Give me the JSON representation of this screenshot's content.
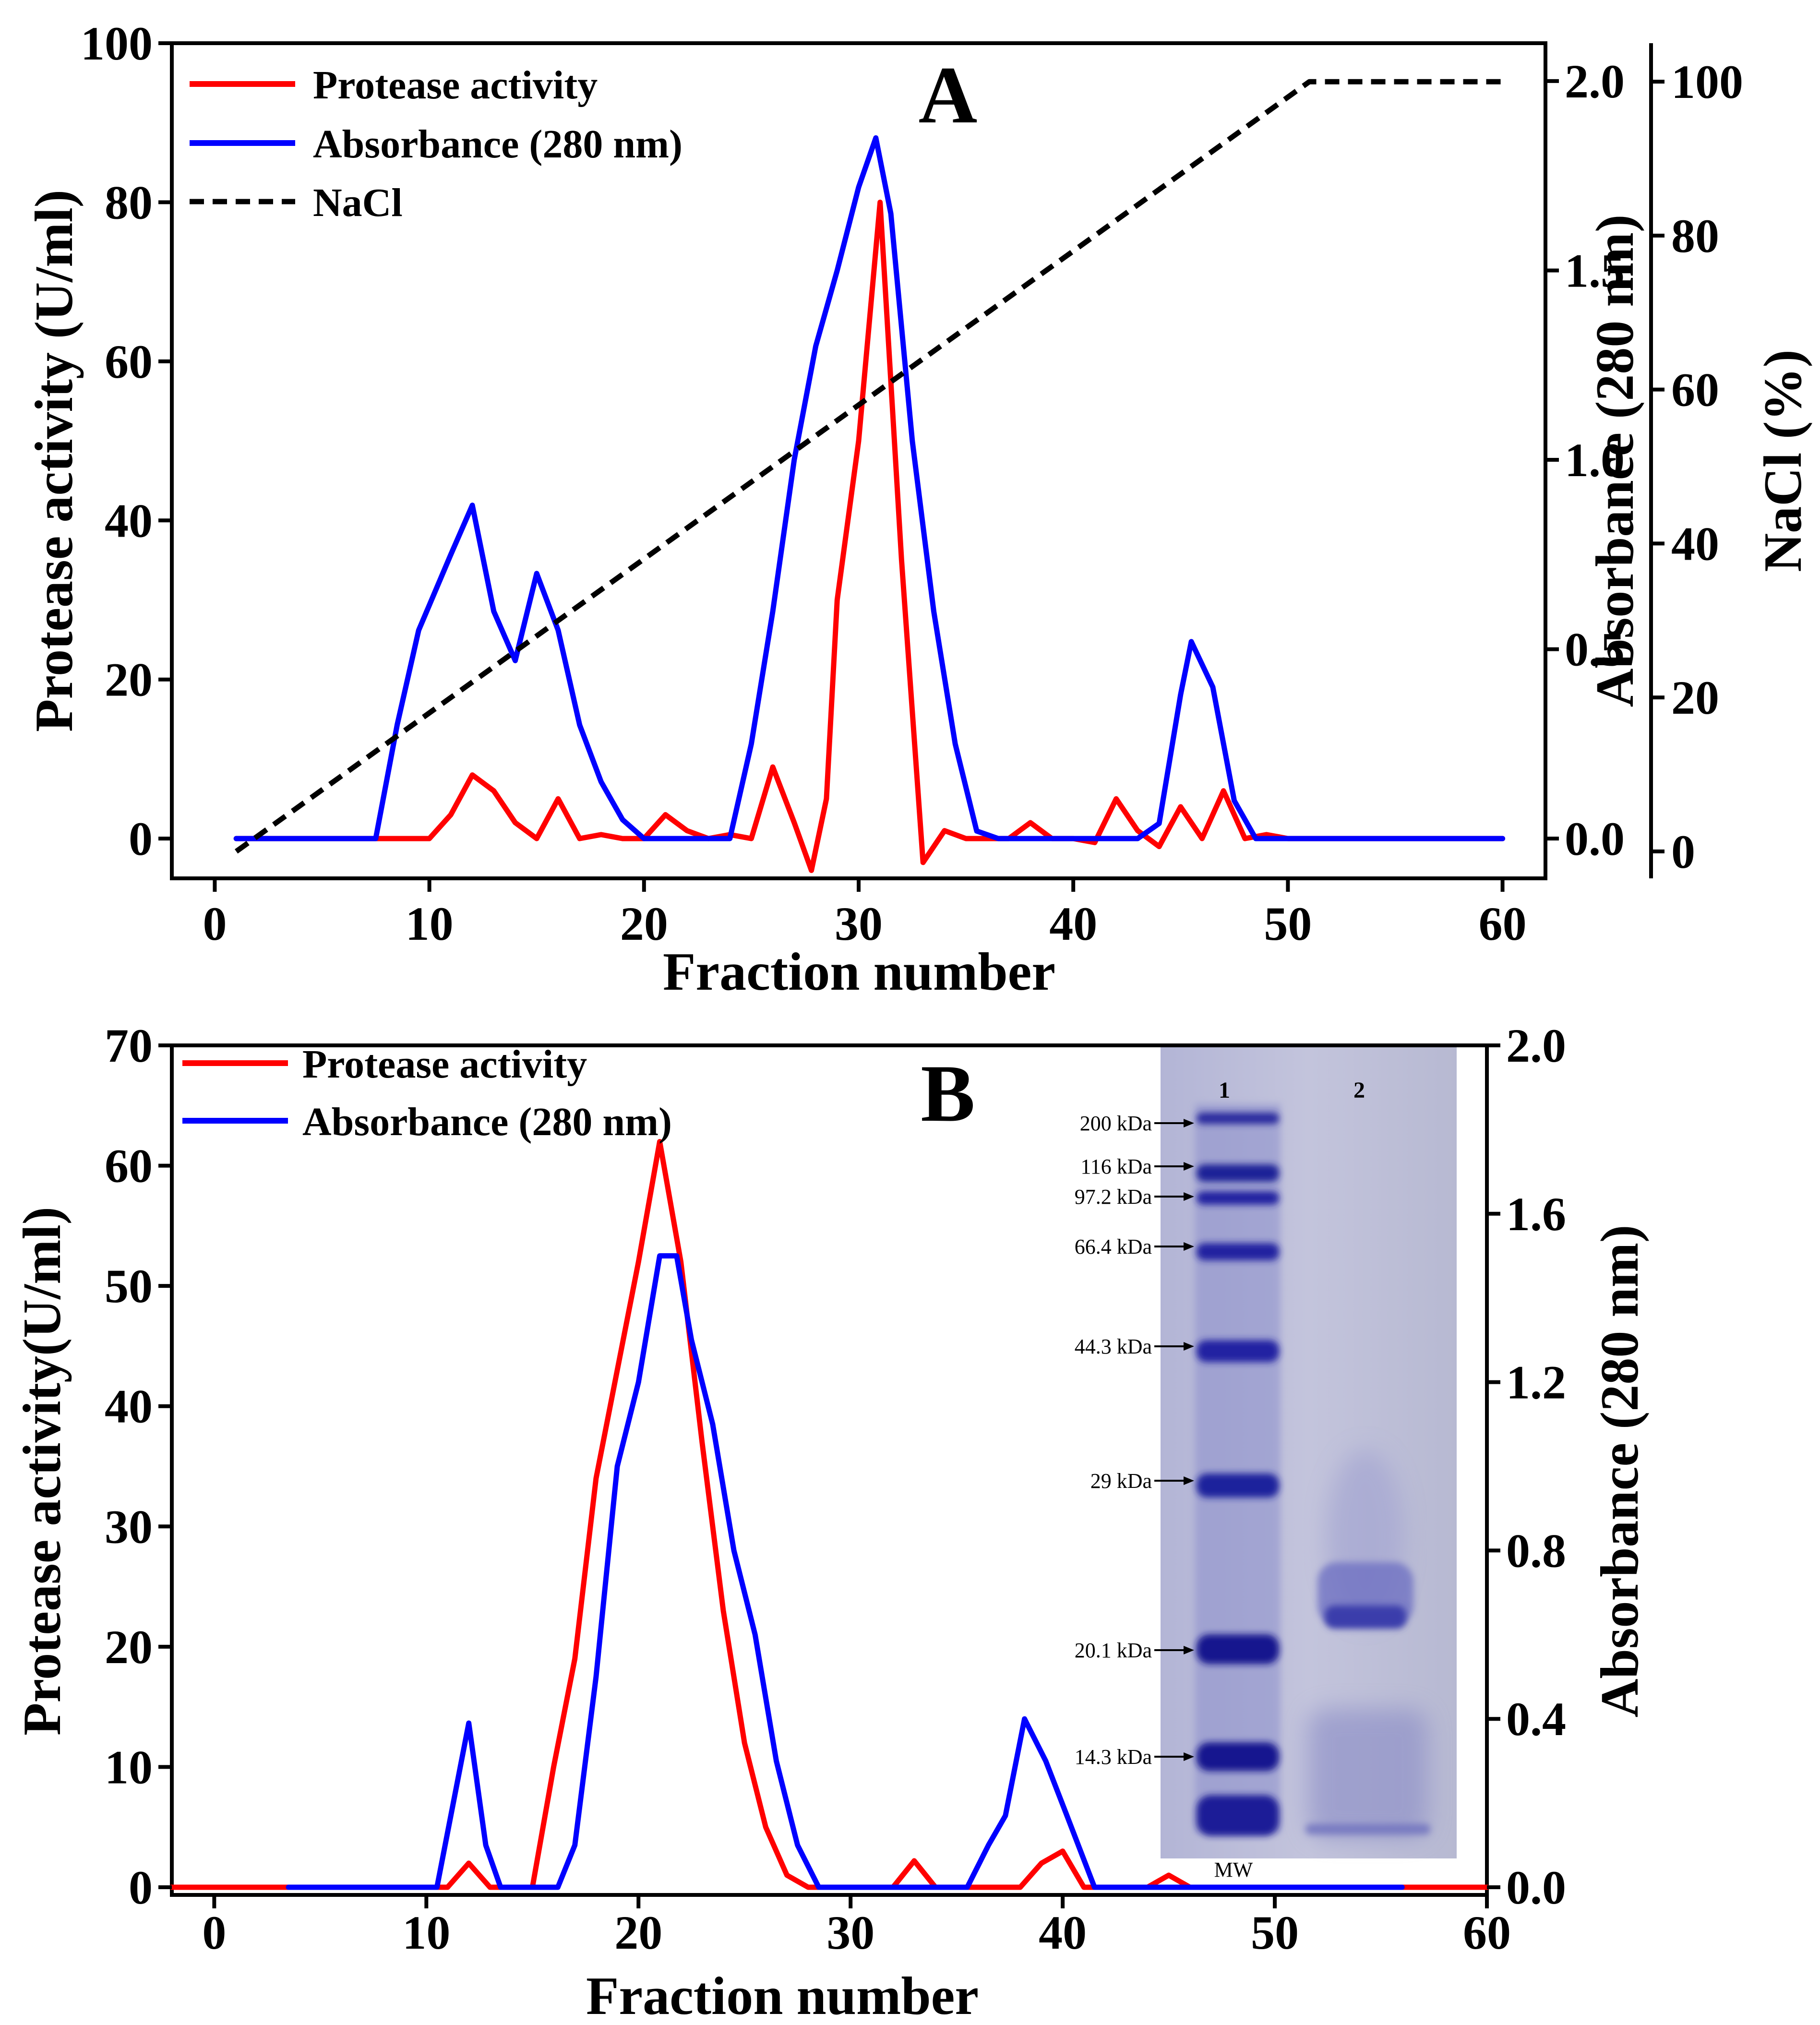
{
  "chart_data": [
    {
      "type": "line",
      "panel": "A",
      "xlabel": "Fraction number",
      "ylabel": "Protease activity (U/ml)",
      "y2label": "Absorbance (280 nm)",
      "y3label": "NaCl (%)",
      "xlim": [
        -2,
        62
      ],
      "ylim": [
        -5,
        100
      ],
      "y2lim": [
        -0.105,
        2.1
      ],
      "y3lim": [
        -3.5,
        105
      ],
      "xticks": [
        "0",
        "10",
        "20",
        "30",
        "40",
        "50",
        "60"
      ],
      "yticks": [
        "0",
        "20",
        "40",
        "60",
        "80",
        "100"
      ],
      "y2ticks": [
        "0.0",
        "0.5",
        "1.0",
        "1.5",
        "2.0"
      ],
      "y3ticks": [
        "0",
        "20",
        "40",
        "60",
        "80",
        "100"
      ],
      "legend_position": "top-left",
      "series": [
        {
          "name": "Protease activity",
          "axis": "left",
          "color": "#ff0000",
          "style": "solid",
          "x": [
            1,
            8,
            9,
            10,
            11,
            12,
            13,
            14,
            15,
            16,
            17,
            18,
            19,
            20,
            21,
            22,
            23,
            24,
            25,
            26,
            27,
            27.8,
            28.5,
            29,
            30,
            31,
            32,
            33,
            34,
            35,
            36,
            37,
            38,
            39,
            40,
            41,
            42,
            43,
            44,
            45,
            46,
            47,
            48,
            49,
            50,
            60
          ],
          "y": [
            0,
            0,
            0,
            0,
            3,
            8,
            6,
            2,
            0,
            5,
            0,
            0.5,
            0,
            0,
            3,
            1,
            0,
            0.5,
            0,
            9,
            2,
            -4,
            5,
            30,
            50,
            80,
            35,
            -3,
            1,
            0,
            0,
            0,
            2,
            0,
            0,
            -0.5,
            5,
            1,
            -1,
            4,
            0,
            6,
            0,
            0.5,
            0,
            0
          ]
        },
        {
          "name": "Absorbance (280 nm)",
          "axis": "right",
          "color": "#0000ff",
          "style": "solid",
          "x": [
            1,
            7.5,
            8.5,
            9.5,
            11,
            12,
            13,
            14,
            15,
            16,
            17,
            18,
            19,
            20,
            21,
            22,
            23,
            24,
            25,
            26,
            27,
            28,
            29,
            30,
            30.8,
            31.5,
            32.5,
            33.5,
            34.5,
            35.5,
            36.5,
            40,
            43,
            44,
            45,
            45.5,
            46.5,
            47.5,
            48.5,
            50,
            60
          ],
          "y": [
            0,
            0,
            0.3,
            0.55,
            0.75,
            0.88,
            0.6,
            0.47,
            0.7,
            0.55,
            0.3,
            0.15,
            0.05,
            0,
            0,
            0,
            0,
            0,
            0.25,
            0.6,
            1,
            1.3,
            1.5,
            1.72,
            1.85,
            1.65,
            1.05,
            0.6,
            0.25,
            0.02,
            0,
            0,
            0,
            0.04,
            0.38,
            0.52,
            0.4,
            0.1,
            0,
            0,
            0
          ]
        },
        {
          "name": "NaCl",
          "axis": "right2",
          "color": "#000000",
          "style": "dashed",
          "x": [
            1,
            51,
            60
          ],
          "y": [
            0,
            100,
            100
          ]
        }
      ]
    },
    {
      "type": "line",
      "panel": "B",
      "xlabel": "Fraction number",
      "ylabel": "Protease activity(U/ml)",
      "y2label": "Absorbance (280 nm)",
      "xlim": [
        -2,
        60
      ],
      "ylim": [
        0,
        70
      ],
      "y2lim": [
        0,
        2.0
      ],
      "xticks": [
        "0",
        "10",
        "20",
        "30",
        "40",
        "50",
        "60"
      ],
      "yticks": [
        "0",
        "10",
        "20",
        "30",
        "40",
        "50",
        "60",
        "70"
      ],
      "y2ticks": [
        "0.0",
        "0.4",
        "0.8",
        "1.2",
        "1.6",
        "2.0"
      ],
      "legend_position": "top-left",
      "series": [
        {
          "name": "Protease activity",
          "axis": "left",
          "color": "#ff0000",
          "style": "solid",
          "x": [
            -2,
            11,
            12,
            13,
            14,
            15,
            16,
            17,
            18,
            19,
            20,
            21,
            22,
            23,
            24,
            25,
            26,
            27,
            28,
            29,
            30,
            31,
            32,
            33,
            34,
            35,
            36,
            37,
            38,
            39,
            40,
            41,
            42,
            43,
            44,
            45,
            46,
            60
          ],
          "y": [
            0,
            0,
            2,
            0,
            0,
            0,
            10,
            19,
            34,
            43,
            52,
            62,
            52,
            37,
            23,
            12,
            5,
            1,
            0,
            0,
            0,
            0,
            0,
            2.2,
            0,
            0,
            0,
            0,
            0,
            2,
            3,
            0,
            0,
            0,
            0,
            1,
            0,
            0
          ]
        },
        {
          "name": "Absorbance (280 nm)",
          "axis": "right",
          "color": "#0000ff",
          "style": "solid",
          "x": [
            3.5,
            10.5,
            12,
            12.8,
            13.5,
            16.2,
            17,
            18,
            19,
            20,
            21,
            21.8,
            22.5,
            23.5,
            24.5,
            25.5,
            26.5,
            27.5,
            28.5,
            35.5,
            36.5,
            37.3,
            38.2,
            39.2,
            40.2,
            41.5,
            56
          ],
          "y": [
            0,
            0,
            0.39,
            0.1,
            0,
            0,
            0.1,
            0.5,
            1,
            1.2,
            1.5,
            1.5,
            1.3,
            1.1,
            0.8,
            0.6,
            0.3,
            0.1,
            0,
            0,
            0.1,
            0.17,
            0.4,
            0.3,
            0.17,
            0,
            0
          ]
        }
      ]
    }
  ],
  "legend_labels": {
    "protease": "Protease activity",
    "absorbance": "Absorbance (280 nm)",
    "nacl": "NaCl"
  },
  "panel_labels": [
    "A",
    "B"
  ],
  "gel_inset": {
    "lanes": [
      "1",
      "2"
    ],
    "ladder_label": "MW",
    "markers": [
      "200 kDa",
      "116 kDa",
      "97.2 kDa",
      "66.4 kDa",
      "44.3 kDa",
      "29 kDa",
      "20.1 kDa",
      "14.3 kDa"
    ],
    "background_color": "#bfc1d9",
    "band_color": "#1e209a"
  }
}
